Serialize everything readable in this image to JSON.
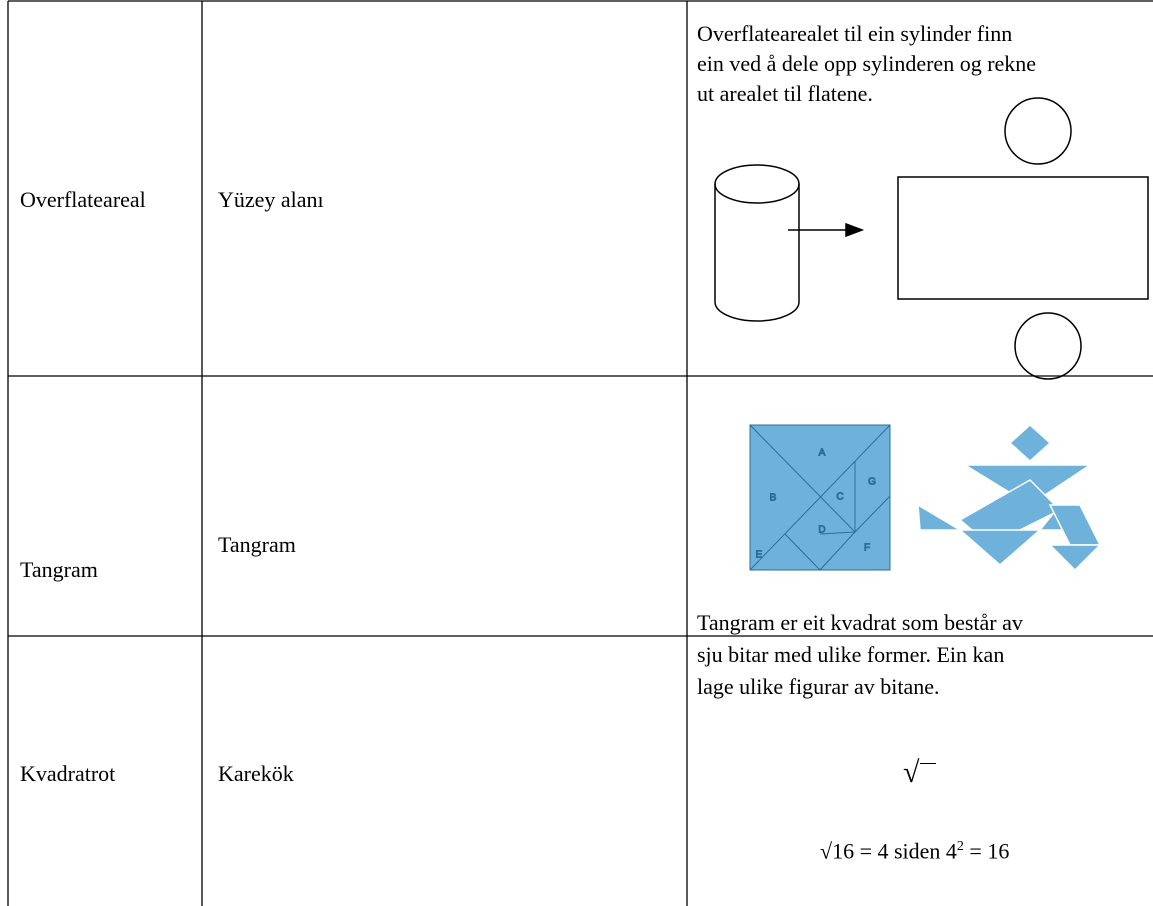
{
  "table": {
    "rows": [
      {
        "term": "Overflateareal",
        "translation": "Yüzey alanı",
        "explanation": [
          "Overflatearealet til ein sylinder finn",
          "ein ved å dele opp sylinderen og rekne",
          "ut arealet til flatene."
        ]
      },
      {
        "term": "Tangram",
        "translation": "Tangram",
        "piece_labels": [
          "A",
          "B",
          "C",
          "D",
          "E",
          "F",
          "G"
        ],
        "explanation": [
          "Tangram er eit kvadrat som består av",
          "sju bitar med ulike former. Ein kan",
          "lage ulike figurar av bitane."
        ]
      },
      {
        "term": "Kvadratrot",
        "translation": "Karekök",
        "symbol": "√",
        "formula": {
          "main": "√16 = 4 siden 4",
          "exponent": "2",
          "tail": " = 16"
        }
      }
    ]
  }
}
